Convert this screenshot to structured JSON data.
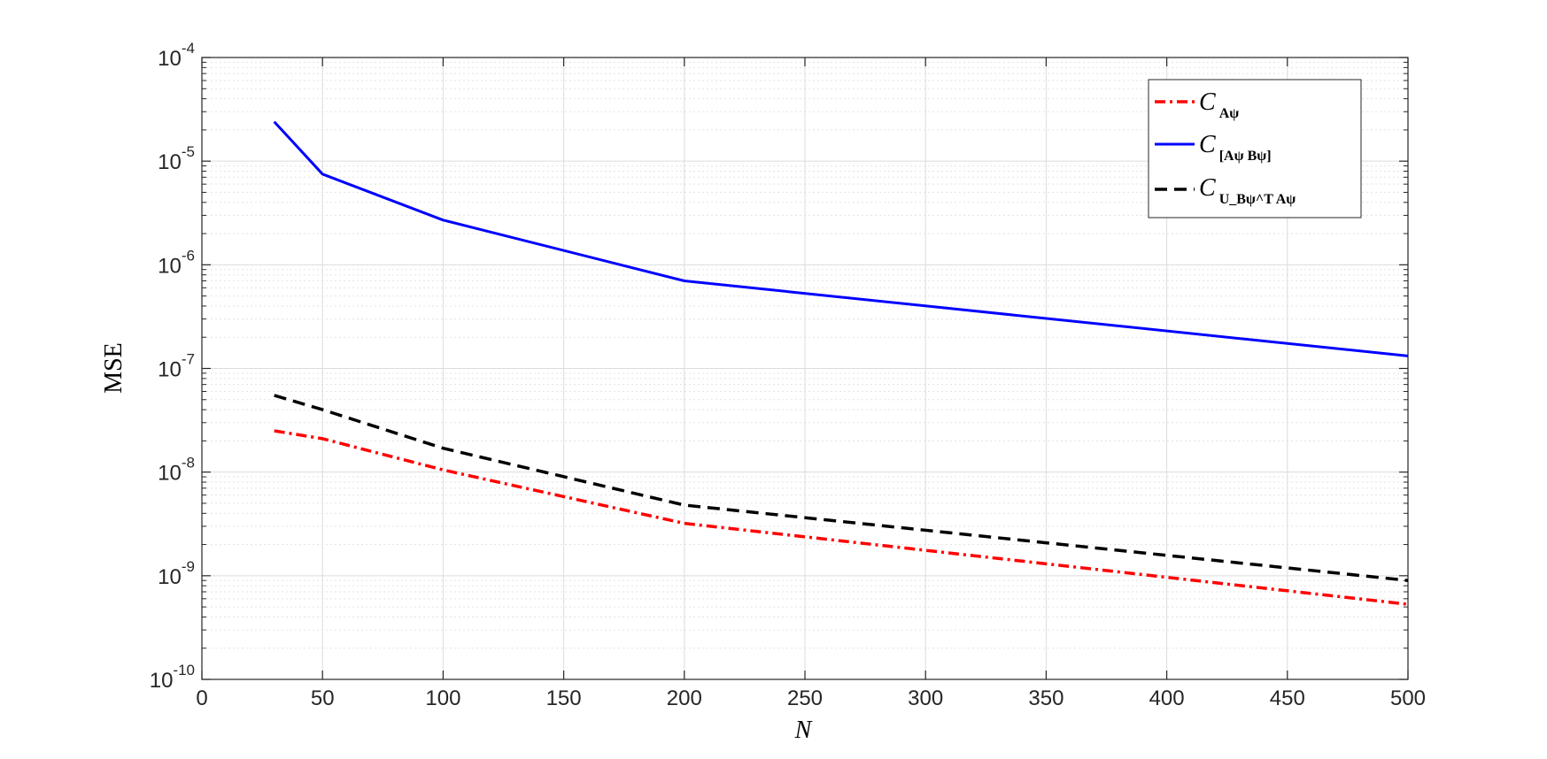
{
  "chart_data": {
    "type": "line",
    "xlabel": "N",
    "ylabel": "MSE",
    "xlim": [
      0,
      500
    ],
    "ylim": [
      1e-10,
      0.0001
    ],
    "yscale": "log",
    "grid": true,
    "minor_grid": true,
    "legend_position": "top-right",
    "x_ticks": [
      "0",
      "50",
      "100",
      "150",
      "200",
      "250",
      "300",
      "350",
      "400",
      "450",
      "500"
    ],
    "y_ticks": [
      {
        "base": "10",
        "exp": "-10"
      },
      {
        "base": "10",
        "exp": "-9"
      },
      {
        "base": "10",
        "exp": "-8"
      },
      {
        "base": "10",
        "exp": "-7"
      },
      {
        "base": "10",
        "exp": "-6"
      },
      {
        "base": "10",
        "exp": "-5"
      },
      {
        "base": "10",
        "exp": "-4"
      }
    ],
    "x": [
      30,
      50,
      100,
      200,
      500
    ],
    "series": [
      {
        "key": "ca",
        "legend_main": "C",
        "legend_sub": "Aψ",
        "color": "#ff0000",
        "style": "dash-dot",
        "values": [
          2.5e-08,
          2.1e-08,
          1.05e-08,
          3.2e-09,
          5.3e-10
        ]
      },
      {
        "key": "cab",
        "legend_main": "C",
        "legend_sub": "[Aψ  Bψ]",
        "color": "#0000ff",
        "style": "solid",
        "values": [
          2.4e-05,
          7.5e-06,
          2.7e-06,
          7e-07,
          1.32e-07
        ]
      },
      {
        "key": "cuba",
        "legend_main": "C",
        "legend_sub": "U_Bψ^T Aψ",
        "color": "#000000",
        "style": "dashed",
        "values": [
          5.5e-08,
          4e-08,
          1.7e-08,
          4.8e-09,
          9e-10
        ]
      }
    ]
  }
}
